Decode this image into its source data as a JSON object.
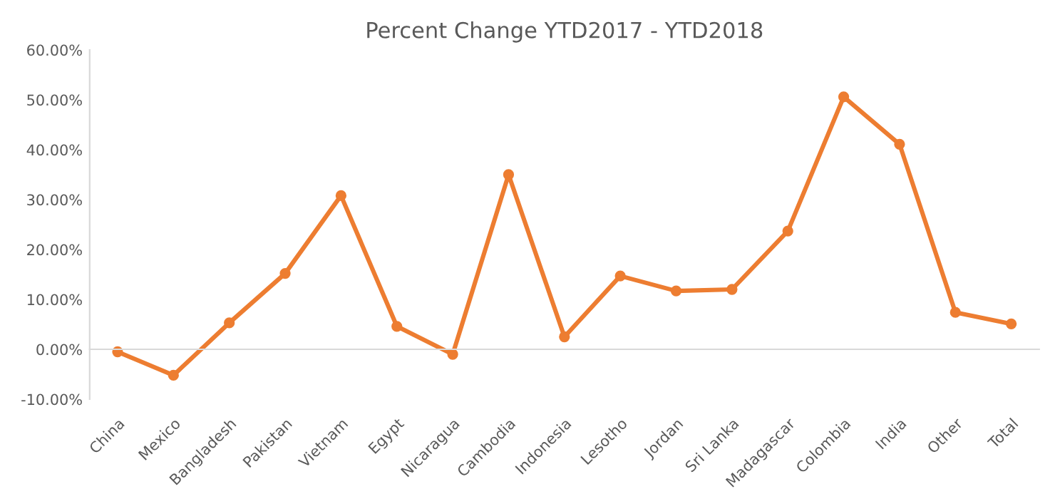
{
  "chart_data": {
    "type": "line",
    "title": "Percent Change YTD2017 - YTD2018",
    "categories": [
      "China",
      "Mexico",
      "Bangladesh",
      "Pakistan",
      "Vietnam",
      "Egypt",
      "Nicaragua",
      "Cambodia",
      "Indonesia",
      "Lesotho",
      "Jordan",
      "Sri Lanka",
      "Madagascar",
      "Colombia",
      "India",
      "Other",
      "Total"
    ],
    "series": [
      {
        "color": "#ed7d31",
        "values": [
          -0.5,
          -5.2,
          5.3,
          15.2,
          30.8,
          4.6,
          -1.0,
          35.0,
          2.5,
          14.7,
          11.7,
          12.0,
          23.7,
          50.6,
          41.1,
          7.4,
          5.1
        ]
      }
    ],
    "ylim": [
      -10,
      60
    ],
    "yticks": [
      {
        "value": -10,
        "label": "-10.00%"
      },
      {
        "value": 0,
        "label": "0.00%"
      },
      {
        "value": 10,
        "label": "10.00%"
      },
      {
        "value": 20,
        "label": "20.00%"
      },
      {
        "value": 30,
        "label": "30.00%"
      },
      {
        "value": 40,
        "label": "40.00%"
      },
      {
        "value": 50,
        "label": "50.00%"
      },
      {
        "value": 60,
        "label": "60.00%"
      }
    ],
    "legend": false,
    "marker": "circle",
    "line_style": "solid"
  }
}
